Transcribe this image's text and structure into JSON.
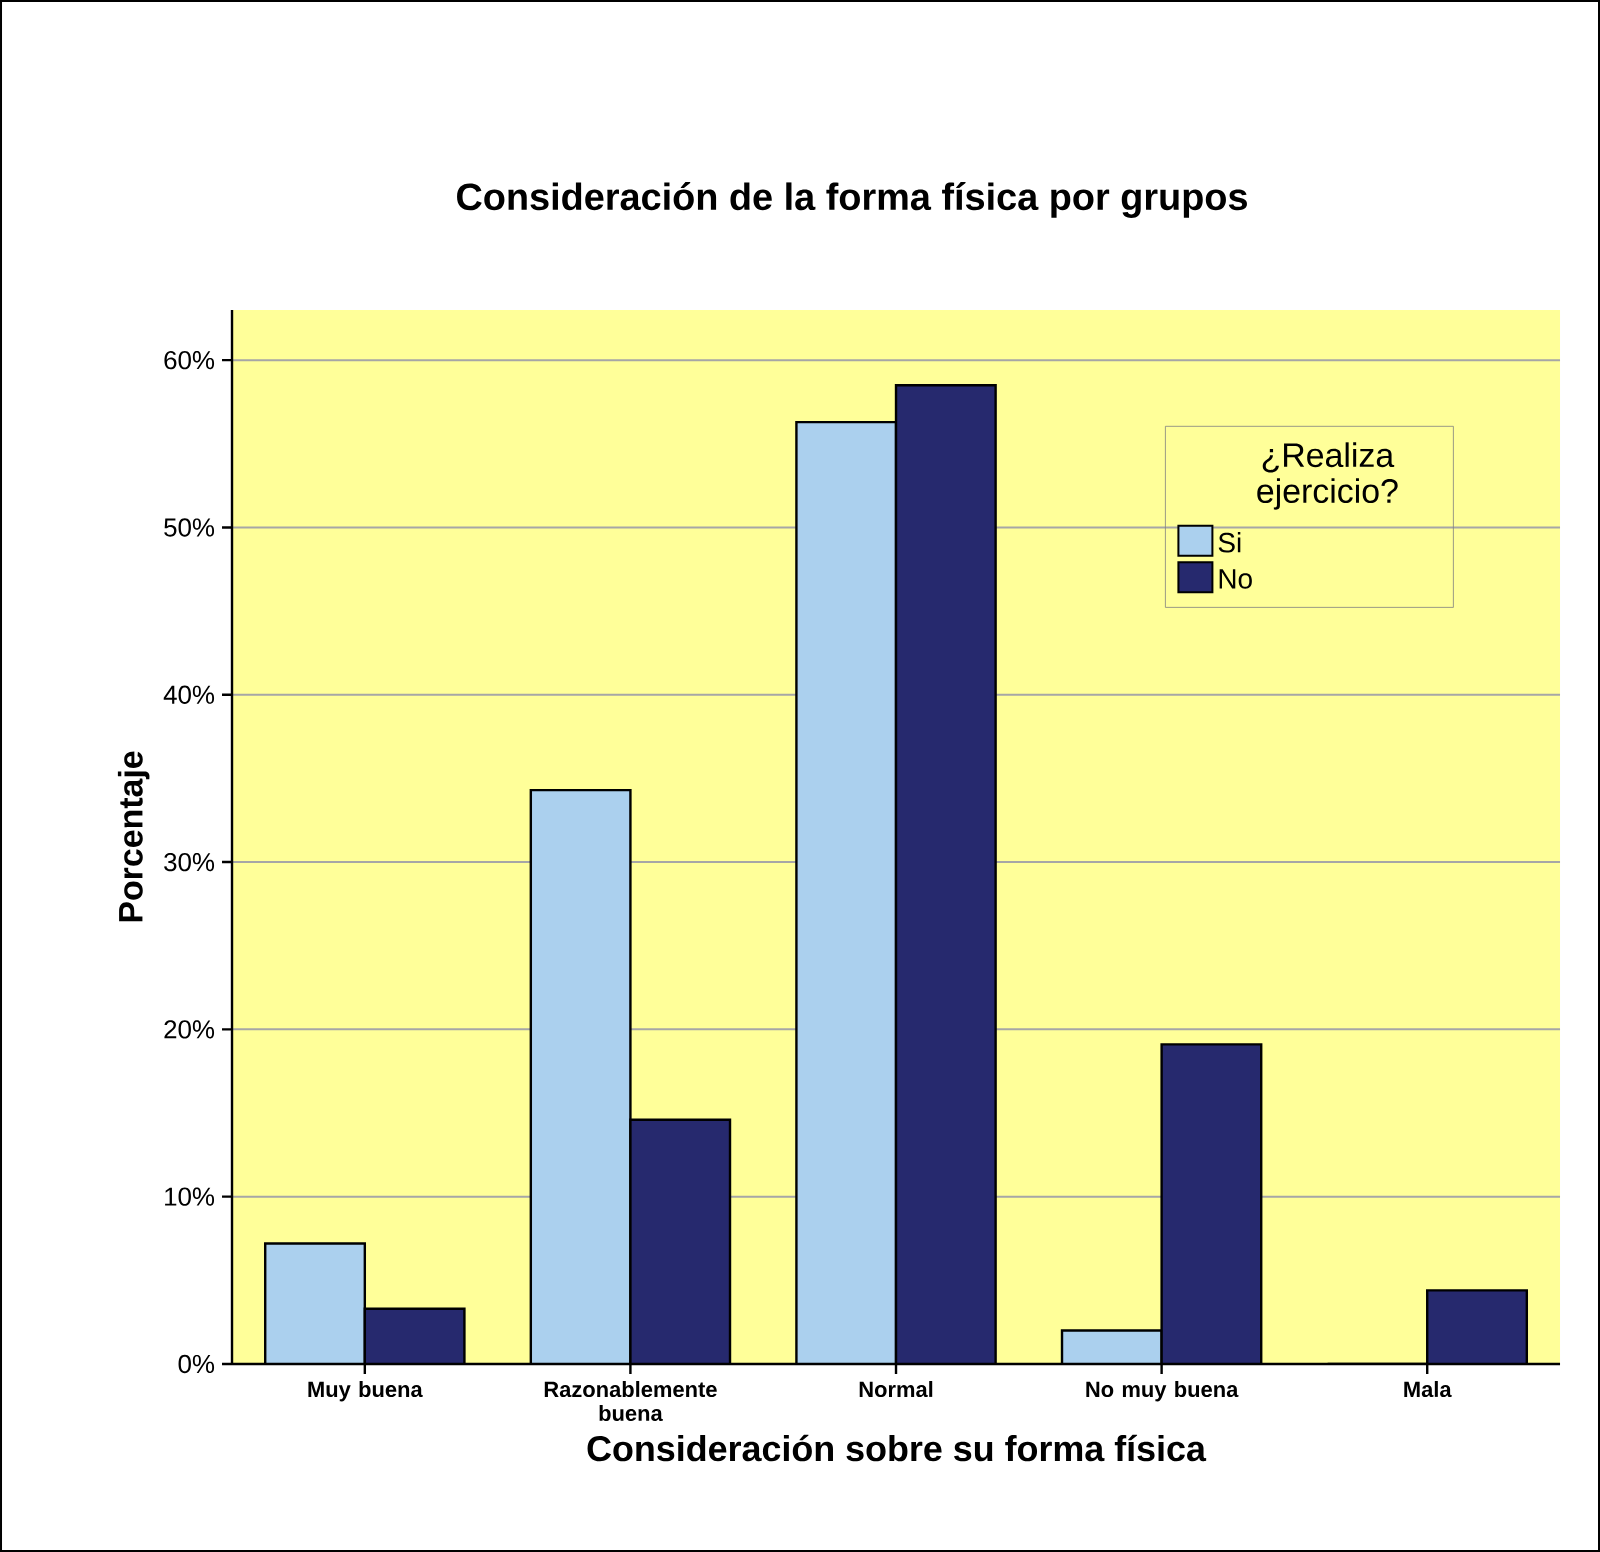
{
  "chart_data": {
    "type": "bar",
    "title": "Consideración de la forma física por grupos",
    "xlabel": "Consideración sobre su forma física",
    "ylabel": "Porcentaje",
    "legend_title": "¿Realiza ejercicio?",
    "categories": [
      "Muy buena",
      "Razonablemente buena",
      "Normal",
      "No muy buena",
      "Mala"
    ],
    "series": [
      {
        "name": "Si",
        "color": "#abd0ee",
        "values": [
          7.2,
          34.3,
          56.3,
          2.0,
          0
        ]
      },
      {
        "name": "No",
        "color": "#26296e",
        "values": [
          3.3,
          14.6,
          58.5,
          19.1,
          4.4
        ]
      }
    ],
    "ylim": [
      0,
      63
    ],
    "yticks": [
      {
        "value": 0,
        "label": "0%"
      },
      {
        "value": 10,
        "label": "10%"
      },
      {
        "value": 20,
        "label": "20%"
      },
      {
        "value": 30,
        "label": "30%"
      },
      {
        "value": 40,
        "label": "40%"
      },
      {
        "value": 50,
        "label": "50%"
      },
      {
        "value": 60,
        "label": "60%"
      }
    ],
    "grid": "y",
    "legend": "top right"
  }
}
